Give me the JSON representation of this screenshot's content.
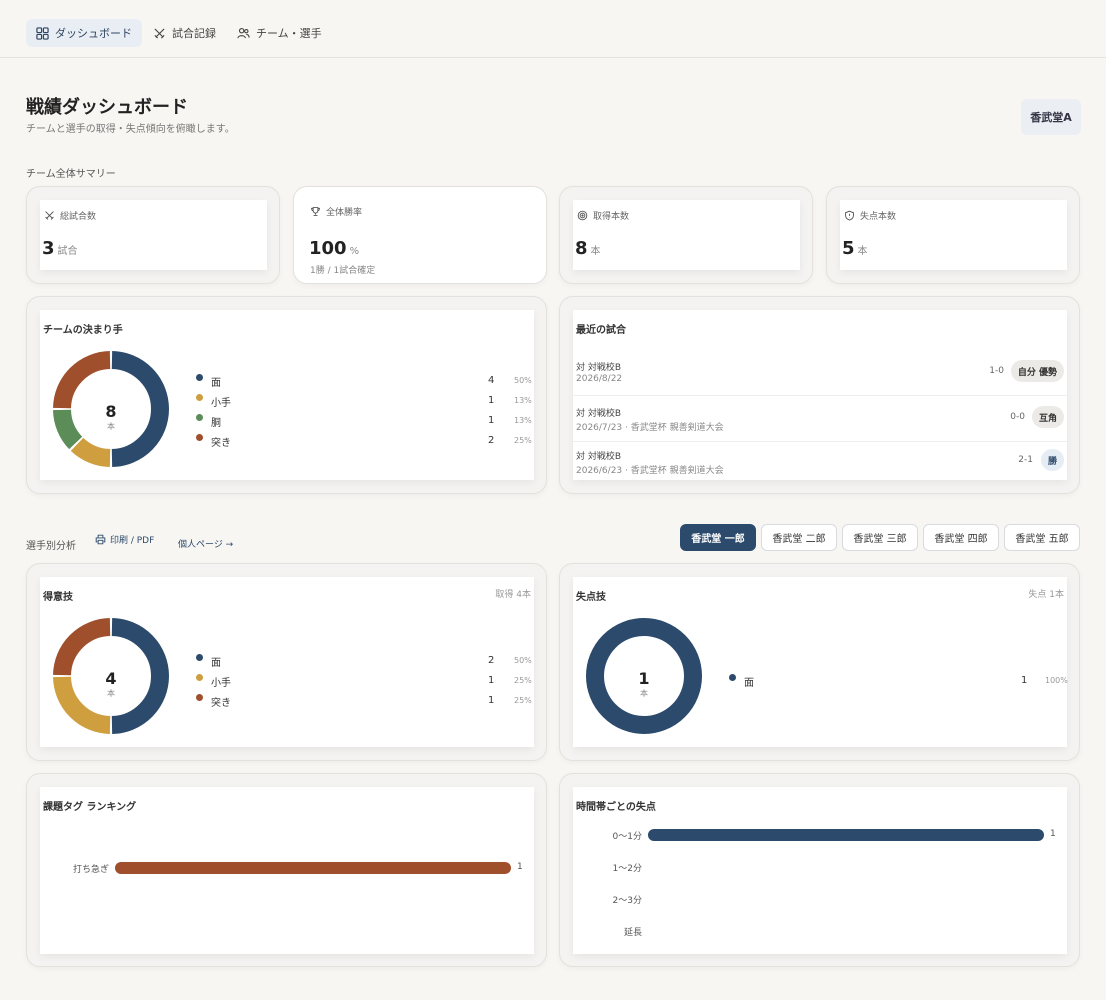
{
  "nav": {
    "tabs": [
      {
        "label": "ダッシュボード",
        "icon": "grid-icon",
        "active": true
      },
      {
        "label": "試合記録",
        "icon": "swords-icon",
        "active": false
      },
      {
        "label": "チーム・選手",
        "icon": "users-icon",
        "active": false
      }
    ]
  },
  "header": {
    "title": "戦績ダッシュボード",
    "subtitle": "チームと選手の取得・失点傾向を俯瞰します。",
    "team_badge": "香武堂A"
  },
  "summary": {
    "section_label": "チーム全体サマリー",
    "total_matches": {
      "label": "総試合数",
      "value": "3",
      "unit": "試合"
    },
    "win_rate": {
      "label": "全体勝率",
      "value": "100",
      "unit": "%",
      "sub": "1勝 / 1試合確定"
    },
    "points_scored": {
      "label": "取得本数",
      "value": "8",
      "unit": "本"
    },
    "points_lost": {
      "label": "失点本数",
      "value": "5",
      "unit": "本"
    }
  },
  "colors": {
    "men": "#2c4a6b",
    "kote": "#cf9e3e",
    "do": "#5c8c57",
    "tsuki": "#a04f2d",
    "accent": "#2c4a6b"
  },
  "team_techniques": {
    "title": "チームの決まり手",
    "total": "8",
    "unit": "本",
    "items": [
      {
        "name": "面",
        "count": "4",
        "pct": "50%",
        "value": 4,
        "color": "#2c4a6b"
      },
      {
        "name": "小手",
        "count": "1",
        "pct": "13%",
        "value": 1,
        "color": "#cf9e3e"
      },
      {
        "name": "胴",
        "count": "1",
        "pct": "13%",
        "value": 1,
        "color": "#5c8c57"
      },
      {
        "name": "突き",
        "count": "2",
        "pct": "25%",
        "value": 2,
        "color": "#a04f2d"
      }
    ]
  },
  "recent_matches": {
    "title": "最近の試合",
    "items": [
      {
        "opponent": "対 対戦校B",
        "date": "2026/8/22",
        "score": "1-0",
        "badge": "自分 優勢"
      },
      {
        "opponent": "対 対戦校B",
        "date": "2026/7/23 · 香武堂杯 親善剣道大会",
        "score": "0-0",
        "badge": "互角"
      },
      {
        "opponent": "対 対戦校B",
        "date": "2026/6/23 · 香武堂杯 親善剣道大会",
        "score": "2-1",
        "badge": "勝"
      }
    ]
  },
  "player_section": {
    "label": "選手別分析",
    "print_label": "印刷 / PDF",
    "personal_label": "個人ページ →",
    "players": [
      "香武堂 一郎",
      "香武堂 二郎",
      "香武堂 三郎",
      "香武堂 四郎",
      "香武堂 五郎"
    ]
  },
  "strong_techniques": {
    "title": "得意技",
    "meta": "取得 4本",
    "total": "4",
    "unit": "本",
    "items": [
      {
        "name": "面",
        "count": "2",
        "pct": "50%",
        "value": 2,
        "color": "#2c4a6b"
      },
      {
        "name": "小手",
        "count": "1",
        "pct": "25%",
        "value": 1,
        "color": "#cf9e3e"
      },
      {
        "name": "突き",
        "count": "1",
        "pct": "25%",
        "value": 1,
        "color": "#a04f2d"
      }
    ]
  },
  "lost_techniques": {
    "title": "失点技",
    "meta": "失点 1本",
    "total": "1",
    "unit": "本",
    "items": [
      {
        "name": "面",
        "count": "1",
        "pct": "100%",
        "value": 1,
        "color": "#2c4a6b"
      }
    ]
  },
  "issue_tags": {
    "title": "課題タグ ランキング",
    "items": [
      {
        "label": "打ち急ぎ",
        "value": 1,
        "display": "1"
      }
    ],
    "max": 1
  },
  "time_losses": {
    "title": "時間帯ごとの失点",
    "items": [
      {
        "label": "0〜1分",
        "value": 1,
        "display": "1"
      },
      {
        "label": "1〜2分",
        "value": 0,
        "display": ""
      },
      {
        "label": "2〜3分",
        "value": 0,
        "display": ""
      },
      {
        "label": "延長",
        "value": 0,
        "display": ""
      }
    ],
    "max": 1
  }
}
